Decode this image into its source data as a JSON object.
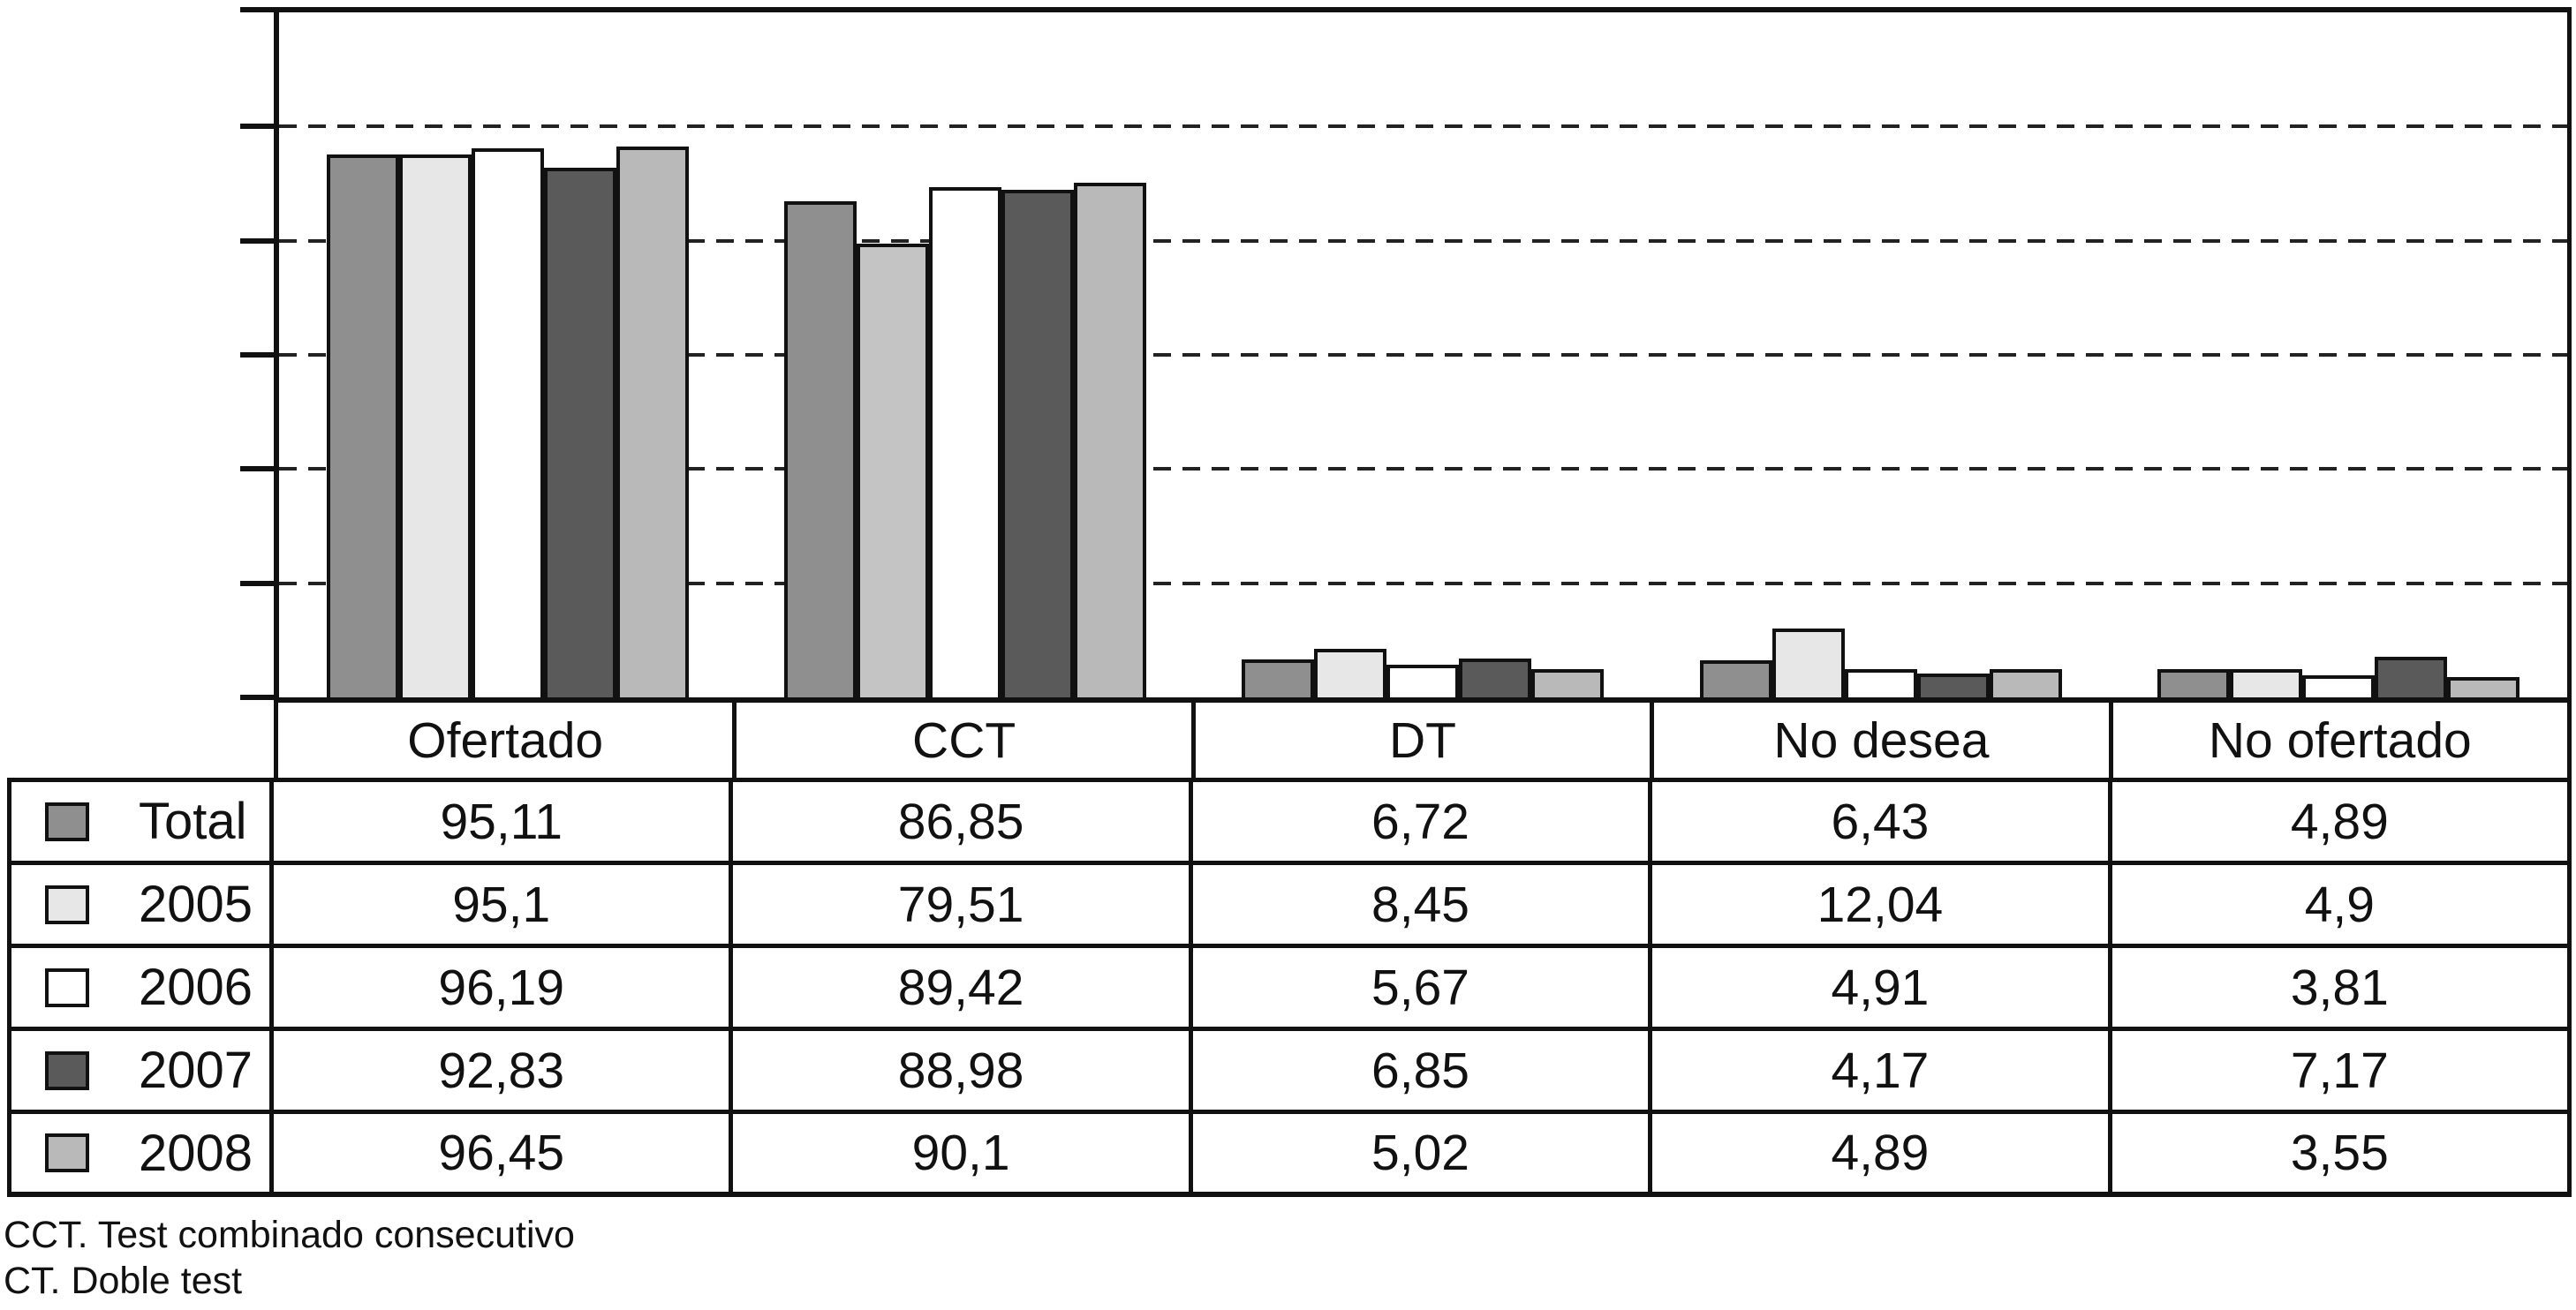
{
  "chart_data": {
    "type": "bar",
    "title": "",
    "xlabel": "",
    "ylabel": "",
    "categories": [
      "Ofertado",
      "CCT",
      "DT",
      "No desea",
      "No ofertado"
    ],
    "series": [
      {
        "name": "Total",
        "color": "#8f8f8f",
        "values": [
          95.11,
          86.85,
          6.72,
          6.43,
          4.89
        ]
      },
      {
        "name": "2005",
        "color": "#e7e7e7",
        "values": [
          95.1,
          79.51,
          8.45,
          12.04,
          4.9
        ],
        "bar_color_overrides": {
          "CCT": "#c4c4c4"
        }
      },
      {
        "name": "2006",
        "color": "#ffffff",
        "values": [
          96.19,
          89.42,
          5.67,
          4.91,
          3.81
        ]
      },
      {
        "name": "2007",
        "color": "#5a5a5a",
        "values": [
          92.83,
          88.98,
          6.85,
          4.17,
          7.17
        ]
      },
      {
        "name": "2008",
        "color": "#b9b9b9",
        "values": [
          96.45,
          90.1,
          5.02,
          4.89,
          3.55
        ]
      }
    ],
    "ylim": [
      0,
      120
    ],
    "gridline_values": [
      20,
      40,
      60,
      80,
      100
    ],
    "grid": "horizontal-dashed",
    "y_tick_labels_visible": false,
    "legend_position": "table-left-column"
  },
  "table": {
    "header": [
      "Ofertado",
      "CCT",
      "DT",
      "No desea",
      "No ofertado"
    ],
    "rows": [
      {
        "label": "Total",
        "swatch_color": "#8f8f8f",
        "values": [
          "95,11",
          "86,85",
          "6,72",
          "6,43",
          "4,89"
        ]
      },
      {
        "label": "2005",
        "swatch_color": "#e7e7e7",
        "values": [
          "95,1",
          "79,51",
          "8,45",
          "12,04",
          "4,9"
        ]
      },
      {
        "label": "2006",
        "swatch_color": "#ffffff",
        "values": [
          "96,19",
          "89,42",
          "5,67",
          "4,91",
          "3,81"
        ]
      },
      {
        "label": "2007",
        "swatch_color": "#5a5a5a",
        "values": [
          "92,83",
          "88,98",
          "6,85",
          "4,17",
          "7,17"
        ]
      },
      {
        "label": "2008",
        "swatch_color": "#b9b9b9",
        "values": [
          "96,45",
          "90,1",
          "5,02",
          "4,89",
          "3,55"
        ]
      }
    ]
  },
  "footnotes": [
    "CCT. Test combinado consecutivo",
    "CT. Doble test"
  ],
  "colors": {
    "background": "#ffffff",
    "axis": "#111111",
    "grid": "#222222",
    "bar_border": "#111111",
    "table_border": "#111111",
    "text": "#111111"
  }
}
